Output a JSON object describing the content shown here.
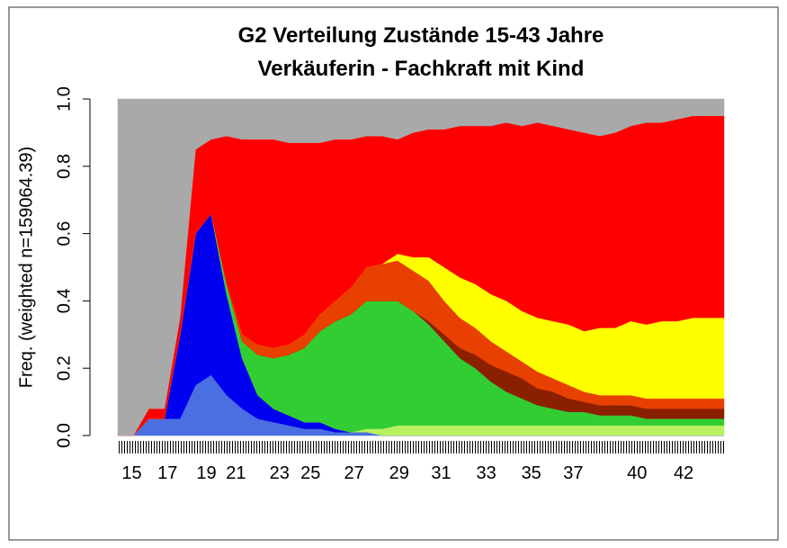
{
  "chart_data": {
    "type": "stacked_area",
    "title": "G2 Verteilung Zustände 15-43 Jahre",
    "subtitle": "Verkäuferin - Fachkraft mit Kind",
    "y_label": "Freq. (weighted n=159064.39)",
    "ylim": [
      0,
      1
    ],
    "yticks": [
      {
        "value": 0,
        "label": "0.0"
      },
      {
        "value": 0.2,
        "label": "0.2"
      },
      {
        "value": 0.4,
        "label": "0.4"
      },
      {
        "value": 0.6,
        "label": "0.6"
      },
      {
        "value": 0.8,
        "label": "0.8"
      },
      {
        "value": 1,
        "label": "1.0"
      }
    ],
    "xlim": [
      0,
      39
    ],
    "xticks": [
      {
        "value": 0.9,
        "label": "15"
      },
      {
        "value": 3.2,
        "label": "17"
      },
      {
        "value": 5.7,
        "label": "19"
      },
      {
        "value": 7.6,
        "label": "21"
      },
      {
        "value": 10.4,
        "label": "23"
      },
      {
        "value": 12.4,
        "label": "25"
      },
      {
        "value": 15.2,
        "label": "27"
      },
      {
        "value": 18.1,
        "label": "29"
      },
      {
        "value": 20.8,
        "label": "31"
      },
      {
        "value": 23.7,
        "label": "33"
      },
      {
        "value": 26.6,
        "label": "35"
      },
      {
        "value": 29.3,
        "label": "37"
      },
      {
        "value": 33.4,
        "label": "40"
      },
      {
        "value": 36.4,
        "label": "42"
      }
    ],
    "series": [
      {
        "color": "#4a6fe0",
        "values": [
          0,
          0,
          0.05,
          0.05,
          0.05,
          0.15,
          0.18,
          0.12,
          0.08,
          0.05,
          0.04,
          0.03,
          0.02,
          0.02,
          0.01,
          0.01,
          0.01,
          0,
          0,
          0,
          0,
          0,
          0,
          0,
          0,
          0,
          0,
          0,
          0,
          0,
          0,
          0,
          0,
          0,
          0,
          0,
          0,
          0,
          0,
          0
        ]
      },
      {
        "color": "#0000f0",
        "values": [
          0,
          0,
          0,
          0,
          0.25,
          0.45,
          0.48,
          0.3,
          0.15,
          0.07,
          0.04,
          0.03,
          0.02,
          0.02,
          0.01,
          0,
          0,
          0,
          0,
          0,
          0,
          0,
          0,
          0,
          0,
          0,
          0,
          0,
          0,
          0,
          0,
          0,
          0,
          0,
          0,
          0,
          0,
          0,
          0,
          0
        ]
      },
      {
        "color": "#b8f060",
        "values": [
          0,
          0,
          0,
          0,
          0,
          0,
          0,
          0,
          0,
          0,
          0,
          0,
          0,
          0,
          0,
          0,
          0.01,
          0.02,
          0.03,
          0.03,
          0.03,
          0.03,
          0.03,
          0.03,
          0.03,
          0.03,
          0.03,
          0.03,
          0.03,
          0.03,
          0.03,
          0.03,
          0.03,
          0.03,
          0.03,
          0.03,
          0.03,
          0.03,
          0.03,
          0.03
        ]
      },
      {
        "color": "#32cd32",
        "values": [
          0,
          0,
          0,
          0,
          0,
          0,
          0,
          0.03,
          0.05,
          0.12,
          0.15,
          0.18,
          0.22,
          0.27,
          0.32,
          0.35,
          0.38,
          0.38,
          0.37,
          0.34,
          0.3,
          0.25,
          0.2,
          0.17,
          0.13,
          0.1,
          0.08,
          0.06,
          0.05,
          0.04,
          0.04,
          0.03,
          0.03,
          0.03,
          0.02,
          0.02,
          0.02,
          0.02,
          0.02,
          0.02
        ]
      },
      {
        "color": "#8b2000",
        "values": [
          0,
          0,
          0,
          0,
          0,
          0,
          0,
          0,
          0,
          0,
          0,
          0,
          0,
          0,
          0,
          0,
          0,
          0,
          0,
          0,
          0.01,
          0.02,
          0.03,
          0.04,
          0.05,
          0.06,
          0.06,
          0.05,
          0.05,
          0.04,
          0.03,
          0.03,
          0.03,
          0.03,
          0.03,
          0.03,
          0.03,
          0.03,
          0.03,
          0.03
        ]
      },
      {
        "color": "#e84000",
        "values": [
          0,
          0,
          0,
          0,
          0,
          0,
          0,
          0,
          0.02,
          0.03,
          0.03,
          0.03,
          0.04,
          0.05,
          0.06,
          0.08,
          0.1,
          0.11,
          0.12,
          0.12,
          0.12,
          0.1,
          0.09,
          0.08,
          0.07,
          0.06,
          0.05,
          0.05,
          0.04,
          0.04,
          0.03,
          0.03,
          0.03,
          0.03,
          0.03,
          0.03,
          0.03,
          0.03,
          0.03,
          0.03
        ]
      },
      {
        "color": "#ffff00",
        "values": [
          0,
          0,
          0,
          0,
          0,
          0,
          0,
          0,
          0,
          0,
          0,
          0,
          0,
          0,
          0,
          0,
          0,
          0,
          0.02,
          0.04,
          0.07,
          0.1,
          0.12,
          0.13,
          0.14,
          0.15,
          0.15,
          0.16,
          0.17,
          0.18,
          0.18,
          0.2,
          0.2,
          0.22,
          0.22,
          0.23,
          0.23,
          0.24,
          0.24,
          0.24
        ]
      },
      {
        "color": "#ff0000",
        "values": [
          0,
          0,
          0.03,
          0.03,
          0.05,
          0.25,
          0.22,
          0.44,
          0.58,
          0.61,
          0.62,
          0.6,
          0.57,
          0.51,
          0.48,
          0.44,
          0.39,
          0.38,
          0.34,
          0.37,
          0.38,
          0.41,
          0.45,
          0.47,
          0.5,
          0.53,
          0.55,
          0.58,
          0.58,
          0.58,
          0.59,
          0.57,
          0.58,
          0.58,
          0.6,
          0.59,
          0.6,
          0.6,
          0.6,
          0.6
        ]
      },
      {
        "color": "#a9a9a9",
        "values": [
          1,
          1,
          0.92,
          0.92,
          0.65,
          0.15,
          0.12,
          0.11,
          0.12,
          0.12,
          0.12,
          0.13,
          0.13,
          0.13,
          0.12,
          0.12,
          0.11,
          0.11,
          0.12,
          0.1,
          0.09,
          0.09,
          0.08,
          0.08,
          0.08,
          0.07,
          0.08,
          0.07,
          0.08,
          0.09,
          0.1,
          0.11,
          0.1,
          0.08,
          0.07,
          0.07,
          0.06,
          0.05,
          0.05,
          0.05
        ]
      }
    ]
  }
}
